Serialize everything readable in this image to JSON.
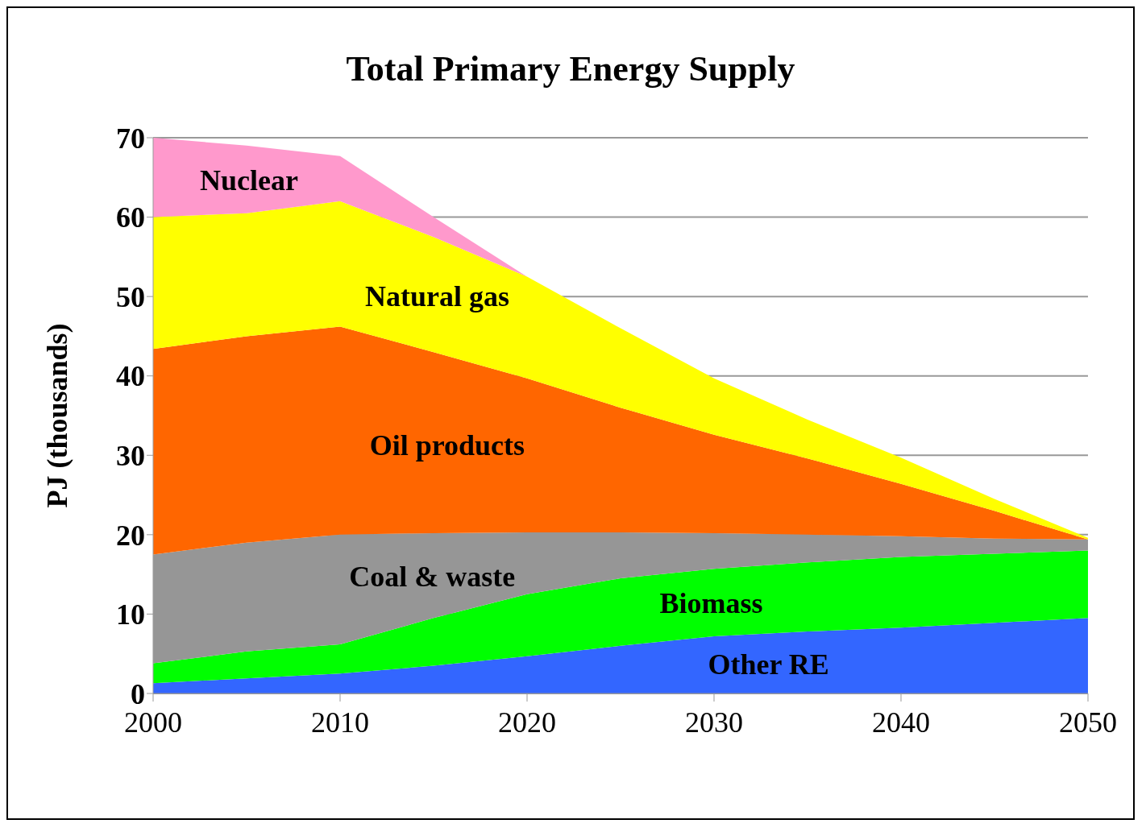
{
  "chart_data": {
    "type": "area",
    "title": "Total Primary Energy Supply",
    "ylabel": "PJ (thousands)",
    "stacked": true,
    "x": [
      2000,
      2005,
      2010,
      2015,
      2020,
      2025,
      2030,
      2035,
      2040,
      2045,
      2050
    ],
    "series": [
      {
        "name": "Other RE",
        "color": "#3366ff",
        "values": [
          1.3,
          1.9,
          2.5,
          3.5,
          4.7,
          6,
          7.2,
          7.8,
          8.3,
          8.9,
          9.5
        ]
      },
      {
        "name": "Biomass",
        "color": "#00ff00",
        "values": [
          2.5,
          3.4,
          3.7,
          6,
          7.8,
          8.5,
          8.5,
          8.7,
          8.9,
          8.7,
          8.5
        ]
      },
      {
        "name": "Coal & waste",
        "color": "#969696",
        "values": [
          13.7,
          13.7,
          13.8,
          10.7,
          7.8,
          5.8,
          4.5,
          3.5,
          2.6,
          1.9,
          1.4
        ]
      },
      {
        "name": "Oil products",
        "color": "#ff6600",
        "values": [
          25.9,
          26,
          26.2,
          22.8,
          19.4,
          15.7,
          12.4,
          9.6,
          6.6,
          3.5,
          0
        ]
      },
      {
        "name": "Natural gas",
        "color": "#ffff00",
        "values": [
          16.6,
          15.5,
          15.8,
          14.5,
          12.8,
          10,
          7.1,
          4.9,
          3.3,
          1.5,
          0.2
        ]
      },
      {
        "name": "Nuclear",
        "color": "#ff99cc",
        "values": [
          10,
          8.5,
          5.7,
          2.5,
          0,
          0,
          0,
          0,
          0,
          0,
          0
        ]
      }
    ],
    "xlim": [
      2000,
      2050
    ],
    "xticks": [
      2000,
      2010,
      2020,
      2030,
      2040,
      2050
    ],
    "ylim": [
      0,
      70
    ],
    "yticks": [
      0,
      10,
      20,
      30,
      40,
      50,
      60,
      70
    ],
    "grid": "y",
    "legend": false
  }
}
